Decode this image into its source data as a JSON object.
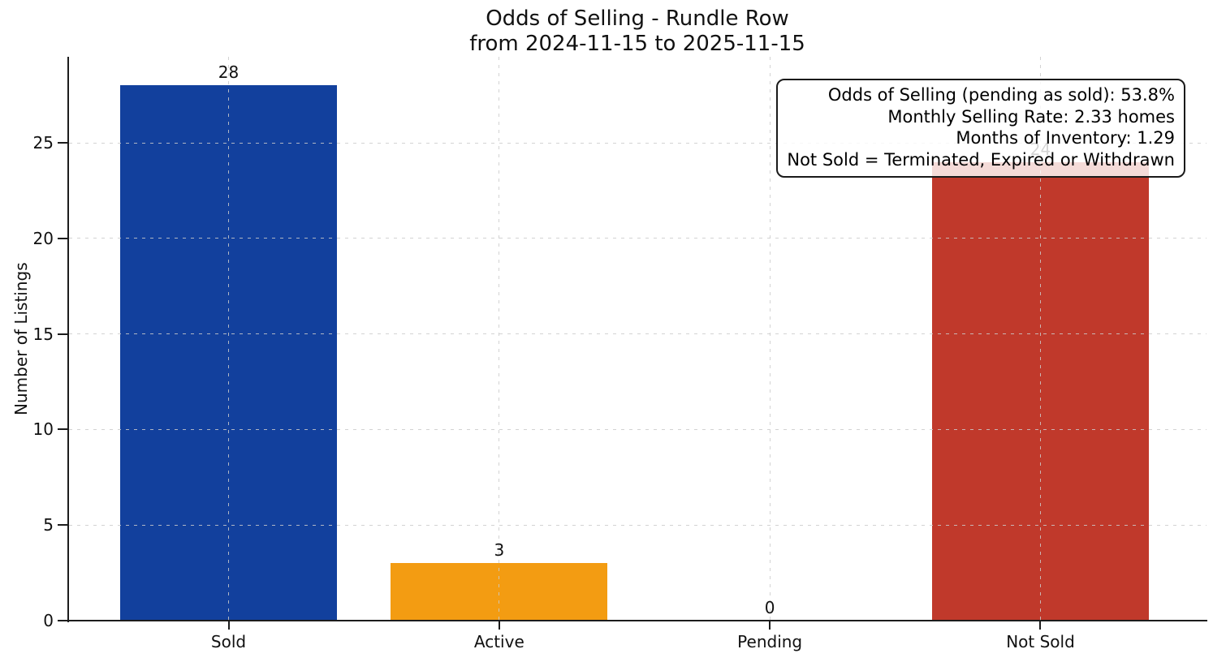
{
  "chart_data": {
    "type": "bar",
    "title": "Odds of Selling - Rundle Row",
    "subtitle": "from 2024-11-15 to 2025-11-15",
    "ylabel": "Number of Listings",
    "xlabel": "",
    "categories": [
      "Sold",
      "Active",
      "Pending",
      "Not Sold"
    ],
    "values": [
      28,
      3,
      0,
      24
    ],
    "bar_colors": [
      "#12409d",
      "#f39c12",
      null,
      "#c0392b"
    ],
    "value_labels": [
      "28",
      "3",
      "0",
      "24"
    ],
    "yticks": [
      0,
      5,
      10,
      15,
      20,
      25
    ],
    "ylim": [
      0,
      29.5
    ],
    "grid": {
      "style": "dashed",
      "color": "#cbcbcb",
      "drawn_over_bars": true
    },
    "legend": "none",
    "annotation_box": {
      "position": "top-right",
      "lines": [
        "Odds of Selling (pending as sold): 53.8%",
        "Monthly Selling Rate: 2.33 homes",
        "Months of Inventory: 1.29",
        "Not Sold = Terminated, Expired or Withdrawn"
      ]
    }
  }
}
